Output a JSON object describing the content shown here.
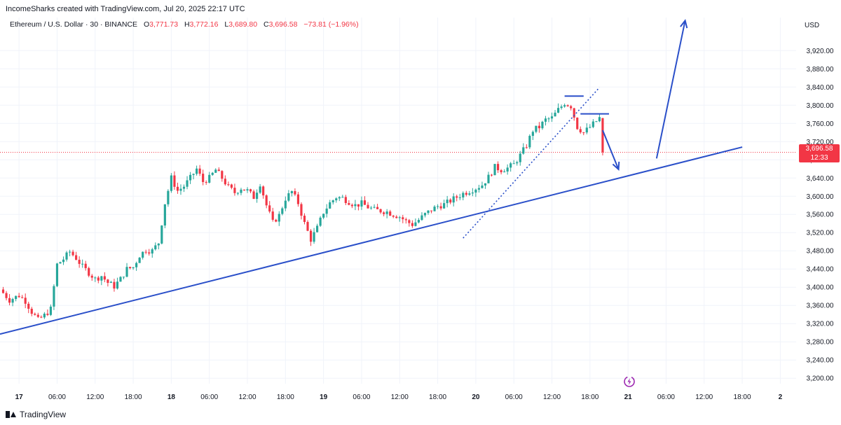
{
  "header": {
    "attribution": "IncomeSharks created with TradingView.com, Jul 20, 2025 22:17 UTC"
  },
  "legend": {
    "symbol": "Ethereum / U.S. Dollar · 30 · BINANCE",
    "o_label": "O",
    "o_value": "3,771.73",
    "h_label": "H",
    "h_value": "3,772.16",
    "l_label": "L",
    "l_value": "3,689.80",
    "c_label": "C",
    "c_value": "3,696.58",
    "change": "−73.81 (−1.96%)"
  },
  "axis": {
    "currency": "USD"
  },
  "price_badge": {
    "price": "3,696.58",
    "countdown": "12:33"
  },
  "footer": {
    "brand": "TradingView"
  },
  "colors": {
    "up": "#26a69a",
    "down": "#f23645",
    "trendline": "#2a4fc9",
    "grid": "#f0f3fa"
  },
  "icons": {
    "replay": "replay-icon",
    "brand_logo": "tradingview-logo-icon"
  },
  "chart_data": {
    "type": "candlestick",
    "interval": "30",
    "y_ticks": [
      "3,200.00",
      "3,240.00",
      "3,280.00",
      "3,320.00",
      "3,360.00",
      "3,400.00",
      "3,440.00",
      "3,480.00",
      "3,520.00",
      "3,560.00",
      "3,600.00",
      "3,640.00",
      "3,680.00",
      "3,720.00",
      "3,760.00",
      "3,800.00",
      "3,840.00",
      "3,880.00",
      "3,920.00"
    ],
    "y_tick_values": [
      3200,
      3240,
      3280,
      3320,
      3360,
      3400,
      3440,
      3480,
      3520,
      3560,
      3600,
      3640,
      3680,
      3720,
      3760,
      3800,
      3840,
      3880,
      3920
    ],
    "ylim": [
      3188,
      3962
    ],
    "x_ticks": [
      {
        "label": "17",
        "t": 0
      },
      {
        "label": "06:00",
        "t": 6
      },
      {
        "label": "12:00",
        "t": 12
      },
      {
        "label": "18:00",
        "t": 18
      },
      {
        "label": "18",
        "t": 24
      },
      {
        "label": "06:00",
        "t": 30
      },
      {
        "label": "12:00",
        "t": 36
      },
      {
        "label": "18:00",
        "t": 42
      },
      {
        "label": "19",
        "t": 48
      },
      {
        "label": "06:00",
        "t": 54
      },
      {
        "label": "12:00",
        "t": 60
      },
      {
        "label": "18:00",
        "t": 66
      },
      {
        "label": "20",
        "t": 72
      },
      {
        "label": "06:00",
        "t": 78
      },
      {
        "label": "12:00",
        "t": 84
      },
      {
        "label": "18:00",
        "t": 90
      },
      {
        "label": "21",
        "t": 96
      },
      {
        "label": "06:00",
        "t": 102
      },
      {
        "label": "12:00",
        "t": 108
      },
      {
        "label": "18:00",
        "t": 114
      },
      {
        "label": "2",
        "t": 120
      }
    ],
    "xlim": [
      -3,
      122.5
    ],
    "close_anchors": [
      [
        -3,
        3395
      ],
      [
        -1.5,
        3372
      ],
      [
        0,
        3382
      ],
      [
        1,
        3370
      ],
      [
        2,
        3346
      ],
      [
        3,
        3328
      ],
      [
        4,
        3338
      ],
      [
        5,
        3352
      ],
      [
        6,
        3450
      ],
      [
        7,
        3462
      ],
      [
        8,
        3478
      ],
      [
        9,
        3464
      ],
      [
        10,
        3445
      ],
      [
        11,
        3432
      ],
      [
        12,
        3418
      ],
      [
        13,
        3425
      ],
      [
        14,
        3410
      ],
      [
        15,
        3402
      ],
      [
        16,
        3418
      ],
      [
        17,
        3440
      ],
      [
        18,
        3444
      ],
      [
        19,
        3470
      ],
      [
        20,
        3482
      ],
      [
        21,
        3480
      ],
      [
        22,
        3498
      ],
      [
        23,
        3585
      ],
      [
        24,
        3640
      ],
      [
        25,
        3612
      ],
      [
        26,
        3622
      ],
      [
        27,
        3640
      ],
      [
        28,
        3660
      ],
      [
        29,
        3632
      ],
      [
        30,
        3640
      ],
      [
        31,
        3658
      ],
      [
        32,
        3640
      ],
      [
        33,
        3620
      ],
      [
        34,
        3608
      ],
      [
        35,
        3618
      ],
      [
        36,
        3612
      ],
      [
        37,
        3598
      ],
      [
        38,
        3628
      ],
      [
        39,
        3580
      ],
      [
        40,
        3542
      ],
      [
        41,
        3558
      ],
      [
        42,
        3595
      ],
      [
        43,
        3610
      ],
      [
        44,
        3585
      ],
      [
        45,
        3540
      ],
      [
        46,
        3505
      ],
      [
        47,
        3530
      ],
      [
        48,
        3565
      ],
      [
        49,
        3585
      ],
      [
        50,
        3598
      ],
      [
        51,
        3596
      ],
      [
        52,
        3588
      ],
      [
        53,
        3580
      ],
      [
        54,
        3584
      ],
      [
        55,
        3576
      ],
      [
        56,
        3570
      ],
      [
        57,
        3568
      ],
      [
        58,
        3566
      ],
      [
        59,
        3560
      ],
      [
        60,
        3555
      ],
      [
        61,
        3545
      ],
      [
        62,
        3538
      ],
      [
        63,
        3548
      ],
      [
        64,
        3560
      ],
      [
        65,
        3570
      ],
      [
        66,
        3578
      ],
      [
        67,
        3582
      ],
      [
        68,
        3590
      ],
      [
        69,
        3598
      ],
      [
        70,
        3606
      ],
      [
        71,
        3612
      ],
      [
        72,
        3618
      ],
      [
        73,
        3625
      ],
      [
        74,
        3642
      ],
      [
        75,
        3664
      ],
      [
        76,
        3658
      ],
      [
        77,
        3662
      ],
      [
        78,
        3670
      ],
      [
        79,
        3690
      ],
      [
        80,
        3712
      ],
      [
        81,
        3745
      ],
      [
        82,
        3752
      ],
      [
        83,
        3768
      ],
      [
        84,
        3772
      ],
      [
        85,
        3790
      ],
      [
        86,
        3805
      ],
      [
        87,
        3798
      ],
      [
        88,
        3752
      ],
      [
        89,
        3740
      ],
      [
        90,
        3752
      ],
      [
        91,
        3765
      ],
      [
        91.5,
        3772
      ],
      [
        92,
        3696.58
      ]
    ],
    "annotations": {
      "support_line": [
        [
          -3,
          3297
        ],
        [
          114,
          3708
        ]
      ],
      "dotted_channel": [
        [
          70,
          3508
        ],
        [
          91.5,
          3839
        ]
      ],
      "resistance_1": {
        "t": [
          86,
          89
        ],
        "price": 3820
      },
      "resistance_2": {
        "t": [
          88.5,
          93
        ],
        "price": 3781
      },
      "down_arrow": [
        [
          92,
          3745
        ],
        [
          94.5,
          3659
        ]
      ],
      "up_arrow": [
        [
          100.5,
          3683
        ],
        [
          105,
          3986
        ]
      ]
    }
  }
}
